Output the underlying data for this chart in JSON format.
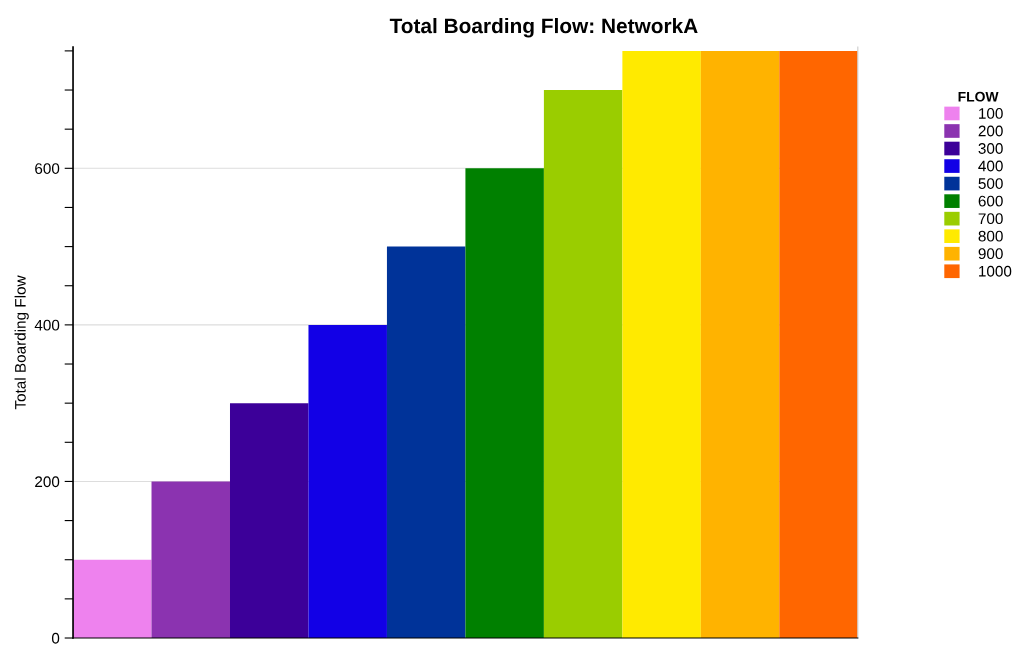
{
  "chart_data": {
    "type": "bar",
    "title": "Total Boarding Flow: NetworkA",
    "ylabel": "Total Boarding Flow",
    "legend_title": "FLOW",
    "ylim": [
      0,
      755
    ],
    "yticks": [
      0,
      {
        "value": 50,
        "label": null
      },
      {
        "value": 100,
        "label": null
      },
      {
        "value": 150,
        "label": null
      },
      200,
      {
        "value": 250,
        "label": null
      },
      {
        "value": 300,
        "label": null
      },
      {
        "value": 350,
        "label": null
      },
      400,
      {
        "value": 450,
        "label": null
      },
      {
        "value": 500,
        "label": null
      },
      {
        "value": 550,
        "label": null
      },
      600,
      {
        "value": 650,
        "label": null
      },
      {
        "value": 700,
        "label": null
      },
      {
        "value": 750,
        "label": null
      }
    ],
    "tick_labels": "y",
    "grid": "y",
    "legend": "top right",
    "stacked": true,
    "categories": [
      null,
      null,
      null,
      null,
      null,
      null,
      null,
      null,
      null,
      null
    ],
    "series": [
      {
        "name": "100",
        "color": "#ee82ee",
        "values": [
          100,
          null,
          null,
          null,
          null,
          null,
          null,
          null,
          null,
          null
        ]
      },
      {
        "name": "200",
        "color": "#8b33b0",
        "values": [
          null,
          200,
          null,
          null,
          null,
          null,
          null,
          null,
          null,
          null
        ]
      },
      {
        "name": "300",
        "color": "#3c0099",
        "values": [
          null,
          null,
          300,
          null,
          null,
          null,
          null,
          null,
          null,
          null
        ]
      },
      {
        "name": "400",
        "color": "#1200e6",
        "values": [
          null,
          null,
          null,
          400,
          null,
          null,
          null,
          null,
          null,
          null
        ]
      },
      {
        "name": "500",
        "color": "#003399",
        "values": [
          null,
          null,
          null,
          null,
          500,
          null,
          null,
          null,
          null,
          null
        ]
      },
      {
        "name": "600",
        "color": "#008000",
        "values": [
          null,
          null,
          null,
          null,
          null,
          600,
          null,
          null,
          null,
          null
        ]
      },
      {
        "name": "700",
        "color": "#9acd00",
        "values": [
          null,
          null,
          null,
          null,
          null,
          null,
          700,
          null,
          null,
          null
        ]
      },
      {
        "name": "800",
        "color": "#ffea00",
        "values": [
          null,
          null,
          null,
          null,
          null,
          null,
          null,
          750,
          null,
          null
        ]
      },
      {
        "name": "900",
        "color": "#ffb300",
        "values": [
          null,
          null,
          null,
          null,
          null,
          null,
          null,
          null,
          750,
          null
        ]
      },
      {
        "name": "1000",
        "color": "#ff6600",
        "values": [
          null,
          null,
          null,
          null,
          null,
          null,
          null,
          null,
          null,
          750
        ]
      }
    ]
  }
}
